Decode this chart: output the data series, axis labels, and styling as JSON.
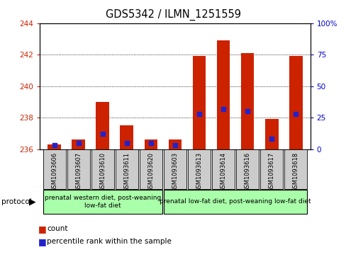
{
  "title": "GDS5342 / ILMN_1251559",
  "samples": [
    "GSM1093606",
    "GSM1093607",
    "GSM1093610",
    "GSM1093611",
    "GSM1093620",
    "GSM1093603",
    "GSM1093613",
    "GSM1093614",
    "GSM1093616",
    "GSM1093617",
    "GSM1093618"
  ],
  "count_values": [
    236.3,
    236.6,
    239.0,
    237.5,
    236.6,
    236.6,
    241.9,
    242.9,
    242.1,
    237.9,
    241.9
  ],
  "percentile_values": [
    3,
    5,
    12,
    5,
    5,
    3,
    28,
    32,
    30,
    8,
    28
  ],
  "ylim_left": [
    236,
    244
  ],
  "ylim_right": [
    0,
    100
  ],
  "yticks_left": [
    236,
    238,
    240,
    242,
    244
  ],
  "yticks_right": [
    0,
    25,
    50,
    75,
    100
  ],
  "bar_color": "#cc2200",
  "dot_color": "#2222cc",
  "bar_width": 0.55,
  "group1_indices": [
    0,
    1,
    2,
    3,
    4
  ],
  "group2_indices": [
    5,
    6,
    7,
    8,
    9,
    10
  ],
  "group1_label": "prenatal western diet, post-weaning\nlow-fat diet",
  "group2_label": "prenatal low-fat diet, post-weaning low-fat diet",
  "protocol_label": "protocol",
  "legend_count": "count",
  "legend_percentile": "percentile rank within the sample",
  "grid_color": "#000000",
  "bg_color": "#ffffff",
  "plot_bg": "#ffffff",
  "left_tick_color": "#cc2200",
  "right_tick_color": "#0000cc",
  "group_box_color": "#aaffaa",
  "sample_box_color": "#cccccc",
  "title_fontsize": 10.5,
  "tick_fontsize": 7.5,
  "sample_fontsize": 6.0,
  "group_fontsize": 6.5,
  "proto_fontsize": 7.5,
  "legend_fontsize": 7.5
}
